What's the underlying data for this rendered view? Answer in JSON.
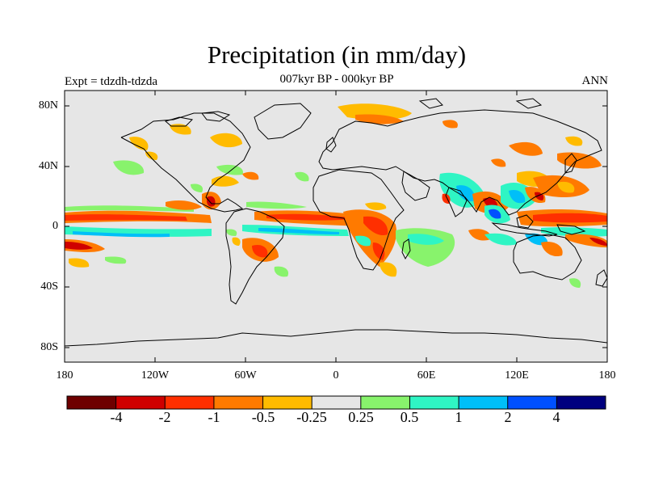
{
  "title": "Precipitation (in mm/day)",
  "subtitle": "007kyr BP - 000kyr BP",
  "experiment": "Expt = tdzdh-tdzda",
  "season": "ANN",
  "lat_labels": [
    "80N",
    "40N",
    "0",
    "40S",
    "80S"
  ],
  "lon_labels": [
    "180",
    "120W",
    "60W",
    "0",
    "60E",
    "120E",
    "180"
  ],
  "colorbar": {
    "colors": [
      "#6e0000",
      "#cf0000",
      "#ff2f00",
      "#ff7a00",
      "#ffbb00",
      "#e6e6e6",
      "#88f36c",
      "#2ff5c4",
      "#00bff8",
      "#0050ff",
      "#00007f"
    ],
    "labels": [
      "-4",
      "-2",
      "-1",
      "-0.5",
      "-0.25",
      "0.25",
      "0.5",
      "1",
      "2",
      "4"
    ]
  },
  "colors": {
    "ocean_bg": "#e6e6e6",
    "coast": "#000000"
  }
}
